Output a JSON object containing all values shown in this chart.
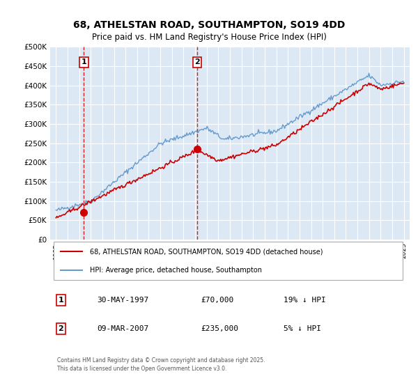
{
  "title1": "68, ATHELSTAN ROAD, SOUTHAMPTON, SO19 4DD",
  "title2": "Price paid vs. HM Land Registry's House Price Index (HPI)",
  "bg_color": "#dce9f5",
  "plot_bg_color": "#dce9f5",
  "red_line_color": "#cc0000",
  "blue_line_color": "#6699cc",
  "grid_color": "#ffffff",
  "sale1_date_label": "30-MAY-1997",
  "sale1_price": 70000,
  "sale1_x": 1997.41,
  "sale2_date_label": "09-MAR-2007",
  "sale2_price": 235000,
  "sale2_x": 2007.19,
  "legend_line1": "68, ATHELSTAN ROAD, SOUTHAMPTON, SO19 4DD (detached house)",
  "legend_line2": "HPI: Average price, detached house, Southampton",
  "table_row1": [
    "1",
    "30-MAY-1997",
    "£70,000",
    "19% ↓ HPI"
  ],
  "table_row2": [
    "2",
    "09-MAR-2007",
    "£235,000",
    "5% ↓ HPI"
  ],
  "footnote": "Contains HM Land Registry data © Crown copyright and database right 2025.\nThis data is licensed under the Open Government Licence v3.0.",
  "ylim": [
    0,
    500000
  ],
  "yticks": [
    0,
    50000,
    100000,
    150000,
    200000,
    250000,
    300000,
    350000,
    400000,
    450000,
    500000
  ],
  "xlim": [
    1994.5,
    2025.5
  ]
}
